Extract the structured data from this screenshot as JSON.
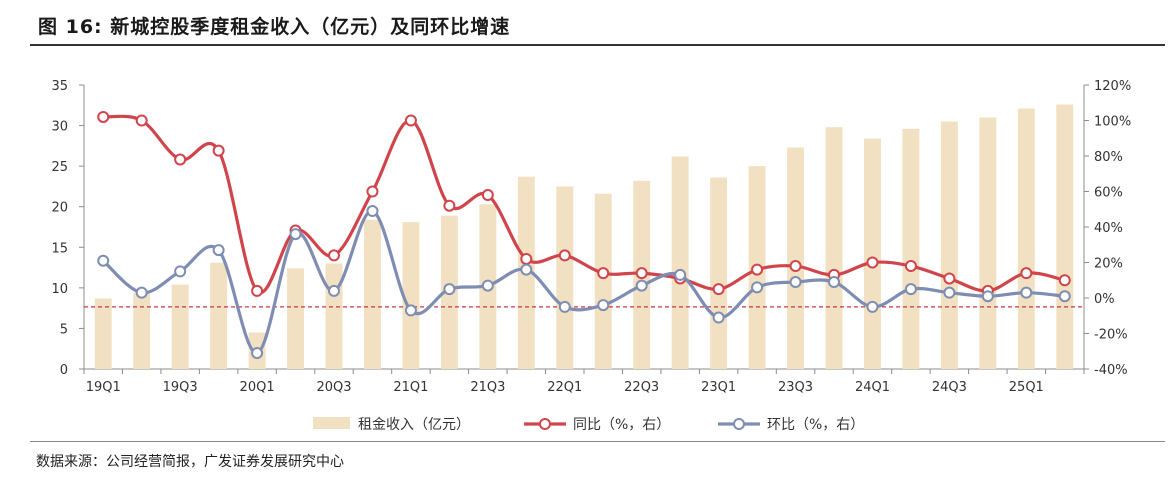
{
  "figure": {
    "title": "图 16: 新城控股季度租金收入（亿元）及同环比增速",
    "source": "数据来源：公司经营简报，广发证券发展研究中心"
  },
  "colors": {
    "bar": "#F1E1C2",
    "yoy": "#D0454C",
    "qoq": "#7F8DB3",
    "zero_line": "#C8383F",
    "axis": "#8C8C8C"
  },
  "chart_data": {
    "type": "bar+line",
    "categories": [
      "19Q1",
      "19Q2",
      "19Q3",
      "19Q4",
      "20Q1",
      "20Q2",
      "20Q3",
      "20Q4",
      "21Q1",
      "21Q2",
      "21Q3",
      "21Q4",
      "22Q1",
      "22Q2",
      "22Q3",
      "22Q4",
      "23Q1",
      "23Q2",
      "23Q3",
      "23Q4",
      "24Q1",
      "24Q2",
      "24Q3",
      "24Q4",
      "25Q1",
      "25Q2"
    ],
    "x_tick_labels": [
      "19Q1",
      "19Q3",
      "20Q1",
      "20Q3",
      "21Q1",
      "21Q3",
      "22Q1",
      "22Q3",
      "23Q1",
      "23Q3",
      "24Q1",
      "24Q3",
      "25Q1"
    ],
    "series": [
      {
        "name": "租金收入（亿元）",
        "type": "bar",
        "axis": "left",
        "values": [
          8.7,
          9.4,
          10.4,
          13.1,
          4.5,
          12.4,
          13.0,
          18.4,
          18.1,
          18.9,
          20.3,
          23.7,
          22.5,
          21.6,
          23.2,
          26.2,
          23.6,
          25.0,
          27.3,
          29.8,
          28.4,
          29.6,
          30.5,
          31.0,
          32.1,
          32.6
        ]
      },
      {
        "name": "同比（%，右）",
        "type": "line",
        "axis": "right",
        "values": [
          102,
          100,
          78,
          83,
          4,
          38,
          24,
          60,
          100,
          52,
          58,
          22,
          24,
          14,
          14,
          11,
          5,
          16,
          18,
          13,
          20,
          18,
          11,
          4,
          14,
          10
        ]
      },
      {
        "name": "环比（%，右）",
        "type": "line",
        "axis": "right",
        "values": [
          21,
          3,
          15,
          27,
          -31,
          36,
          4,
          49,
          -7,
          5,
          7,
          16,
          -5,
          -4,
          7,
          13,
          -11,
          6,
          9,
          9,
          -5,
          5,
          3,
          1,
          3,
          1
        ]
      }
    ],
    "y_left": {
      "min": 0,
      "max": 35,
      "ticks": [
        0,
        5,
        10,
        15,
        20,
        25,
        30,
        35
      ]
    },
    "y_right": {
      "min": -40,
      "max": 120,
      "ticks": [
        "-40%",
        "-20%",
        "0%",
        "20%",
        "40%",
        "60%",
        "80%",
        "100%",
        "120%"
      ]
    },
    "reference_line": {
      "axis": "right",
      "value": -5,
      "style": "dashed"
    },
    "legend": {
      "position": "bottom",
      "items": [
        "租金收入（亿元）",
        "同比（%，右）",
        "环比（%，右）"
      ]
    }
  }
}
